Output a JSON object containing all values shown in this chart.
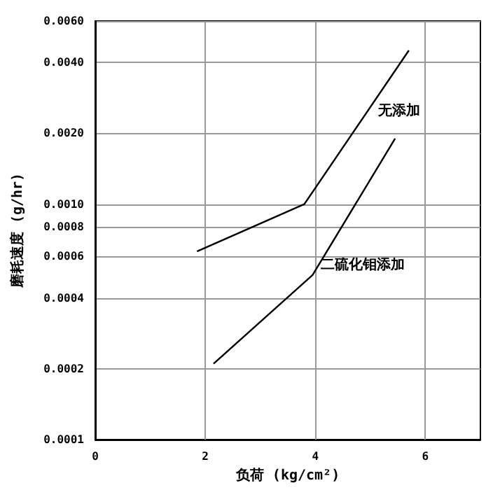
{
  "chart_data": {
    "type": "line",
    "xlabel": "负荷 (kg/cm²)",
    "ylabel": "磨耗速度 (g/hr)",
    "log": "y",
    "grid": true,
    "legend": false,
    "line_style": "solid",
    "xlim": [
      0,
      7
    ],
    "xticks": [
      0,
      2,
      4,
      6
    ],
    "ylim": [
      0.0001,
      0.006
    ],
    "yticks": [
      {
        "value": 0.0001,
        "label": "0.0001"
      },
      {
        "value": 0.0002,
        "label": "0.0002"
      },
      {
        "value": 0.0004,
        "label": "0.0004"
      },
      {
        "value": 0.0006,
        "label": "0.0006"
      },
      {
        "value": 0.0008,
        "label": "0.0008"
      },
      {
        "value": 0.001,
        "label": "0.0010"
      },
      {
        "value": 0.002,
        "label": "0.0020"
      },
      {
        "value": 0.004,
        "label": "0.0040"
      },
      {
        "value": 0.006,
        "label": "0.0060"
      }
    ],
    "series": [
      {
        "name": "无添加",
        "color": "#000000",
        "x": [
          1.85,
          3.8,
          5.7
        ],
        "values": [
          0.00063,
          0.001,
          0.0045
        ]
      },
      {
        "name": "二硫化钼添加",
        "color": "#000000",
        "x": [
          2.15,
          3.95,
          5.45
        ],
        "values": [
          0.00021,
          0.0005,
          0.0019
        ]
      }
    ]
  }
}
